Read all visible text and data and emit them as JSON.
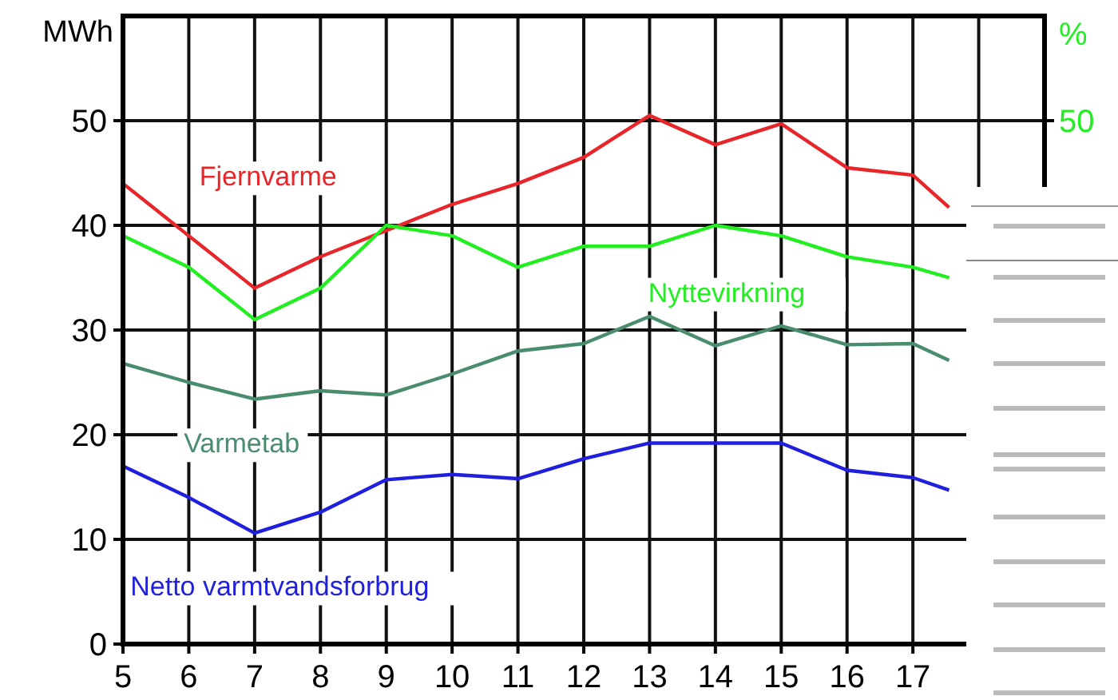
{
  "chart_data": {
    "type": "line",
    "ylabel": "MWh",
    "y2label": "%",
    "x": [
      5,
      6,
      7,
      8,
      9,
      10,
      11,
      12,
      13,
      14,
      15,
      16,
      17,
      17.55
    ],
    "xlim": [
      5,
      19
    ],
    "xticks": [
      5,
      6,
      7,
      8,
      9,
      10,
      11,
      12,
      13,
      14,
      15,
      16,
      17,
      {
        "value": 18,
        "label": null
      }
    ],
    "ylim": [
      0,
      60
    ],
    "yticks": [
      0,
      10,
      20,
      30,
      40,
      50
    ],
    "annotations": [
      "50"
    ],
    "grid": true,
    "marker": "none",
    "line_style": "solid",
    "series": [
      {
        "name": "Fjernvarme",
        "color": "#e8262a",
        "values": [
          44,
          39,
          34,
          37,
          39.5,
          42,
          44,
          46.5,
          50.5,
          47.7,
          49.7,
          45.5,
          44.8,
          41.7
        ]
      },
      {
        "name": "Nyttevirkning",
        "color": "#22ee22",
        "values": [
          39,
          36,
          31,
          34,
          40,
          39,
          36,
          38,
          38,
          40,
          39,
          37,
          36,
          35
        ]
      },
      {
        "name": "Varmetab",
        "color": "#4a8c6e",
        "values": [
          26.8,
          25,
          23.4,
          24.2,
          23.8,
          25.8,
          28,
          28.7,
          31.3,
          28.5,
          30.4,
          28.6,
          28.7,
          27.1
        ]
      },
      {
        "name": "Netto varmtvandsforbrug",
        "color": "#1f1fdd",
        "values": [
          17,
          14,
          10.6,
          12.6,
          15.7,
          16.2,
          15.8,
          17.7,
          19.2,
          19.2,
          19.2,
          16.6,
          15.9,
          14.7
        ]
      }
    ]
  }
}
